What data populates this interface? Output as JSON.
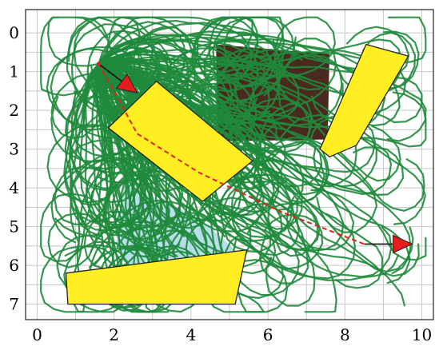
{
  "plot": {
    "x_ticks": [
      "0",
      "2",
      "4",
      "6",
      "8",
      "10"
    ],
    "y_ticks": [
      "0",
      "1",
      "2",
      "3",
      "4",
      "5",
      "6",
      "7"
    ],
    "xlim": [
      -0.3,
      10.3
    ],
    "ylim": [
      -0.6,
      7.4
    ],
    "grid": true
  },
  "colors": {
    "obstacle_fill": "#ffee22",
    "trajectory": "#1f8a3c",
    "planned_path": "#e0241c",
    "start_marker": "#e81c1c",
    "goal_marker": "#e81c1c",
    "dark_region": "#4a2a1e",
    "shaded_region": "#aad8e6"
  },
  "scene": {
    "start": [
      1.6,
      0.8
    ],
    "start_arrow_tip": [
      2.6,
      1.55
    ],
    "goal": [
      8.5,
      5.45
    ],
    "goal_arrow_tip": [
      9.75,
      5.45
    ],
    "path": [
      [
        1.6,
        0.8
      ],
      [
        2.05,
        1.6
      ],
      [
        2.6,
        2.6
      ],
      [
        4.2,
        3.6
      ],
      [
        6.3,
        4.6
      ],
      [
        8.5,
        5.45
      ]
    ],
    "obstacles": [
      [
        [
          3.1,
          1.25
        ],
        [
          5.6,
          3.3
        ],
        [
          4.3,
          4.35
        ],
        [
          1.85,
          2.45
        ]
      ],
      [
        [
          8.55,
          0.3
        ],
        [
          9.65,
          0.6
        ],
        [
          8.3,
          2.9
        ],
        [
          7.6,
          3.2
        ],
        [
          7.35,
          3.0
        ]
      ],
      [
        [
          0.75,
          6.2
        ],
        [
          5.45,
          5.6
        ],
        [
          5.15,
          7.0
        ],
        [
          0.8,
          7.0
        ]
      ]
    ],
    "dark_region": [
      [
        4.65,
        0.3
      ],
      [
        7.6,
        0.55
      ],
      [
        7.55,
        2.75
      ],
      [
        4.7,
        2.8
      ]
    ],
    "shaded_region": [
      [
        2.25,
        3.9
      ],
      [
        4.2,
        4.75
      ],
      [
        5.2,
        5.65
      ],
      [
        4.0,
        6.0
      ],
      [
        2.55,
        6.3
      ],
      [
        2.05,
        5.4
      ]
    ]
  }
}
